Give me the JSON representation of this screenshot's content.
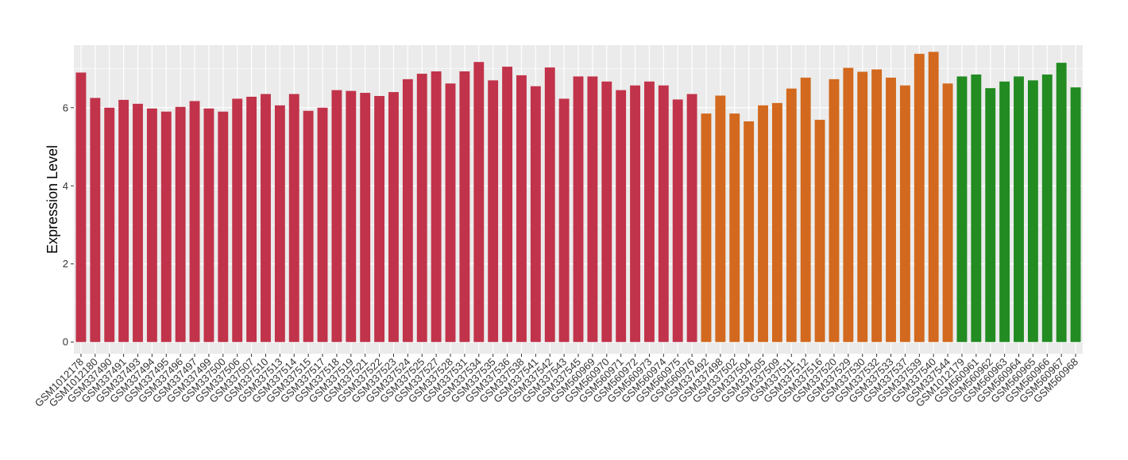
{
  "chart_data": {
    "type": "bar",
    "title": "",
    "xlabel": "",
    "ylabel": "Expression Level",
    "ylim": [
      -0.3,
      7.6
    ],
    "yticks": [
      0,
      2,
      4,
      6
    ],
    "grid": true,
    "legend": "none",
    "panel_background": "#ebebeb",
    "grid_color": "#ffffff",
    "colors": {
      "red": "#c1334a",
      "orange": "#d2691e",
      "green": "#228b22"
    },
    "categories": [
      "GSM1012178",
      "GSM1012180",
      "GSM337490",
      "GSM337491",
      "GSM337493",
      "GSM337494",
      "GSM337495",
      "GSM337496",
      "GSM337497",
      "GSM337499",
      "GSM337500",
      "GSM337506",
      "GSM337507",
      "GSM337510",
      "GSM337513",
      "GSM337514",
      "GSM337515",
      "GSM337517",
      "GSM337518",
      "GSM337519",
      "GSM337521",
      "GSM337522",
      "GSM337523",
      "GSM337524",
      "GSM337525",
      "GSM337527",
      "GSM337528",
      "GSM337531",
      "GSM337534",
      "GSM337535",
      "GSM337536",
      "GSM337538",
      "GSM337541",
      "GSM337542",
      "GSM337543",
      "GSM337545",
      "GSM560969",
      "GSM560970",
      "GSM560971",
      "GSM560972",
      "GSM560973",
      "GSM560974",
      "GSM560975",
      "GSM560976",
      "GSM337492",
      "GSM337498",
      "GSM337502",
      "GSM337504",
      "GSM337505",
      "GSM337509",
      "GSM337511",
      "GSM337512",
      "GSM337516",
      "GSM337520",
      "GSM337529",
      "GSM337530",
      "GSM337532",
      "GSM337533",
      "GSM337537",
      "GSM337539",
      "GSM337540",
      "GSM337544",
      "GSM1012179",
      "GSM560961",
      "GSM560962",
      "GSM560963",
      "GSM560964",
      "GSM560965",
      "GSM560966",
      "GSM560967",
      "GSM560968"
    ],
    "values": [
      6.9,
      6.25,
      6.0,
      6.2,
      6.1,
      5.98,
      5.9,
      6.02,
      6.17,
      5.98,
      5.9,
      6.23,
      6.28,
      6.35,
      6.06,
      6.35,
      5.92,
      6.0,
      6.45,
      6.43,
      6.38,
      6.3,
      6.4,
      6.73,
      6.87,
      6.93,
      6.62,
      6.93,
      7.17,
      6.7,
      7.05,
      6.83,
      6.55,
      7.03,
      6.23,
      6.8,
      6.8,
      6.67,
      6.45,
      6.57,
      6.67,
      6.57,
      6.21,
      6.35,
      5.85,
      6.31,
      5.85,
      5.65,
      6.06,
      6.12,
      6.49,
      6.77,
      5.69,
      6.73,
      7.02,
      6.92,
      6.98,
      6.77,
      6.57,
      7.38,
      7.43,
      6.62,
      6.8,
      6.85,
      6.5,
      6.67,
      6.8,
      6.7,
      6.85,
      7.15,
      6.52
    ],
    "groups": [
      "red",
      "red",
      "red",
      "red",
      "red",
      "red",
      "red",
      "red",
      "red",
      "red",
      "red",
      "red",
      "red",
      "red",
      "red",
      "red",
      "red",
      "red",
      "red",
      "red",
      "red",
      "red",
      "red",
      "red",
      "red",
      "red",
      "red",
      "red",
      "red",
      "red",
      "red",
      "red",
      "red",
      "red",
      "red",
      "red",
      "red",
      "red",
      "red",
      "red",
      "red",
      "red",
      "red",
      "red",
      "orange",
      "orange",
      "orange",
      "orange",
      "orange",
      "orange",
      "orange",
      "orange",
      "orange",
      "orange",
      "orange",
      "orange",
      "orange",
      "orange",
      "orange",
      "orange",
      "orange",
      "orange",
      "green",
      "green",
      "green",
      "green",
      "green",
      "green",
      "green",
      "green",
      "green"
    ]
  }
}
